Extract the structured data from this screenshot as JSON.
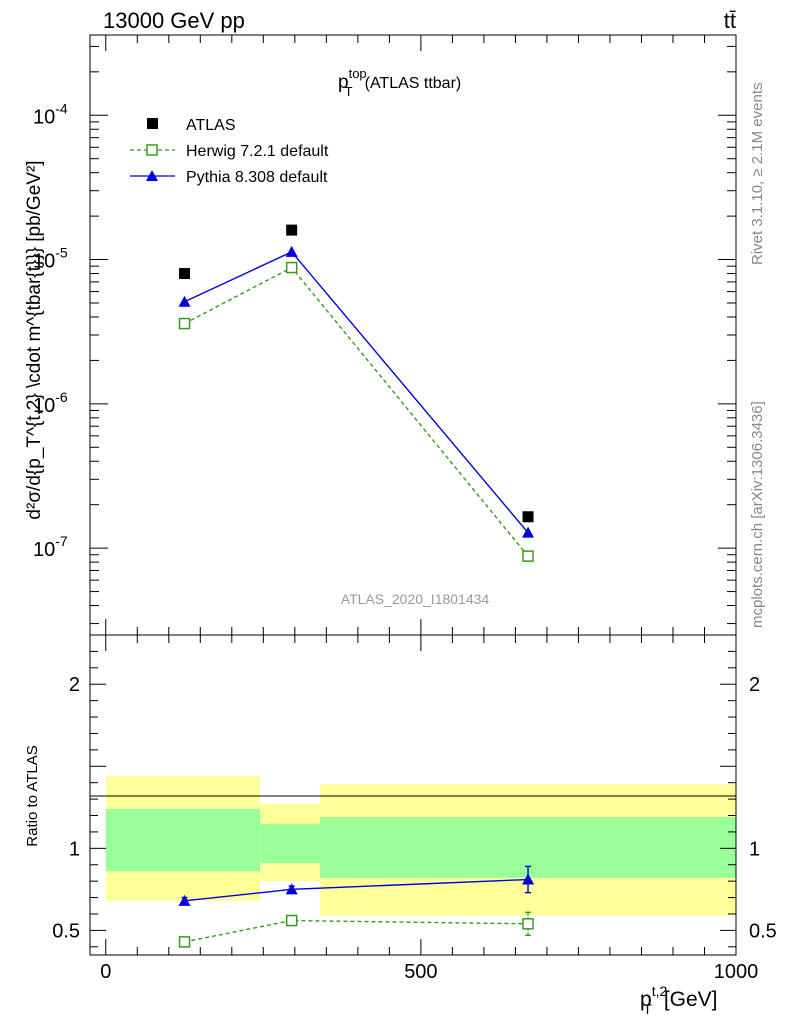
{
  "header": {
    "energy_label": "13000 GeV pp",
    "process_label": "tt̄"
  },
  "side_text": {
    "rivet": "Rivet 3.1.10, ≥ 2.1M events",
    "mcplots": "mcplots.cern.ch [arXiv:1306.3436]"
  },
  "colors": {
    "atlas": "#000000",
    "herwig": "#3a9a1a",
    "pythia": "#0000dd",
    "band_inner": "#99ff99",
    "band_outer": "#ffff99"
  },
  "chart_data": [
    {
      "type": "scatter",
      "title_main": "p",
      "title_sup": "top",
      "title_sub": "T",
      "title_rest": "(ATLAS ttbar)",
      "analysis_label": "ATLAS_2020_I1801434",
      "ylabel": "d²σ/d{p_T^{t,2} \\cdot m^{tbar{t}}} [pb/GeV²]",
      "yscale": "log",
      "ylim": [
        2.5e-08,
        0.00036
      ],
      "y_ticks": [
        "10",
        "10",
        "10",
        "10"
      ],
      "y_tick_exponents": [
        "-7",
        "-6",
        "-5",
        "-4"
      ],
      "y_tick_values": [
        1e-07,
        1e-06,
        1e-05,
        0.0001
      ],
      "xlim": [
        -25,
        1000
      ],
      "legend_position": "top-left",
      "series": [
        {
          "name": "ATLAS",
          "marker": "filled-square",
          "x": [
            125,
            295,
            670
          ],
          "y": [
            8e-06,
            1.6e-05,
            1.65e-07
          ]
        },
        {
          "name": "Herwig 7.2.1 default",
          "marker": "open-square",
          "line": "dashed",
          "x": [
            125,
            295,
            670
          ],
          "y": [
            3.6e-06,
            8.8e-06,
            8.8e-08
          ]
        },
        {
          "name": "Pythia 8.308 default",
          "marker": "filled-triangle",
          "line": "solid",
          "x": [
            125,
            295,
            670
          ],
          "y": [
            5.1e-06,
            1.13e-05,
            1.28e-07
          ]
        }
      ]
    },
    {
      "type": "scatter",
      "ylabel": "Ratio to ATLAS",
      "xlabel_main": "p",
      "xlabel_sup": "t,2",
      "xlabel_sub": "T",
      "xlabel_unit": "[GeV]",
      "ylim": [
        0.35,
        2.3
      ],
      "xlim": [
        -25,
        1000
      ],
      "y_ticks": [
        "0.5",
        "1",
        "2"
      ],
      "y_tick_values": [
        0.5,
        1,
        2
      ],
      "x_ticks": [
        "0",
        "500",
        "1000"
      ],
      "x_tick_values": [
        0,
        500,
        1000
      ],
      "bands": [
        {
          "x_range": [
            0,
            245
          ],
          "outer": [
            0.68,
            1.44
          ],
          "inner": [
            0.86,
            1.24
          ]
        },
        {
          "x_range": [
            245,
            340
          ],
          "outer": [
            0.8,
            1.27
          ],
          "inner": [
            0.91,
            1.15
          ]
        },
        {
          "x_range": [
            340,
            1000
          ],
          "outer": [
            0.59,
            1.39
          ],
          "inner": [
            0.82,
            1.19
          ]
        }
      ],
      "series": [
        {
          "name": "Herwig 7.2.1 default",
          "x": [
            125,
            295,
            670
          ],
          "y": [
            0.43,
            0.56,
            0.54
          ],
          "err": [
            0.0,
            0.0,
            0.07
          ]
        },
        {
          "name": "Pythia 8.308 default",
          "x": [
            125,
            295,
            670
          ],
          "y": [
            0.68,
            0.75,
            0.81
          ],
          "err": [
            0.02,
            0.02,
            0.08
          ]
        }
      ]
    }
  ]
}
